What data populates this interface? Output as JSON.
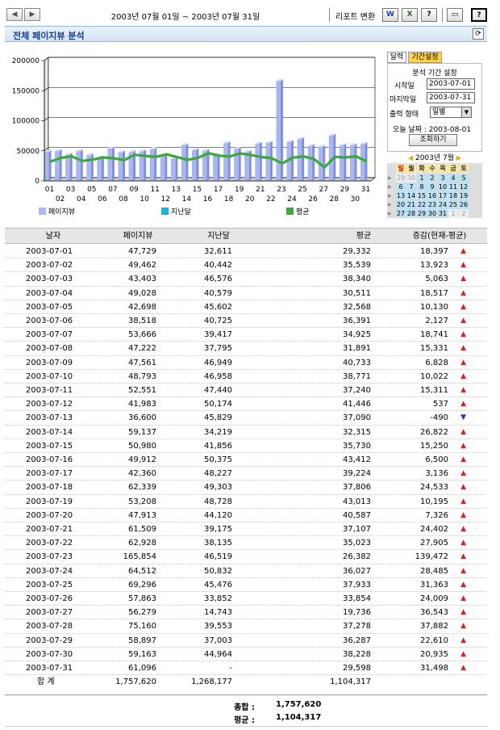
{
  "toolbar": {
    "prev_icon": "◀",
    "next_icon": "▶",
    "date_range": "2003년 07월 01일 ~ 2003년 07월 31일",
    "report_label": "리포트 변환",
    "word_icon": "W",
    "excel_icon": "X",
    "help_icon": "?",
    "print_icon": "▭",
    "info_icon": "?"
  },
  "title": "전체 페이지뷰 분석",
  "refresh_icon": "⟳",
  "panel": {
    "tab_calendar": "달력",
    "tab_period": "기간설정",
    "heading": "분석 기간 설정",
    "start_label": "시작일",
    "start_value": "2003-07-01",
    "end_label": "마지막일",
    "end_value": "2003-07-31",
    "output_label": "출력 형태",
    "output_value": "일별",
    "today_label": "오늘 날짜 : 2003-08-01",
    "query_button": "조회하기"
  },
  "calendar": {
    "month_label": "2003년 7월",
    "weekday_headers": [
      "일",
      "월",
      "화",
      "수",
      "목",
      "금",
      "토"
    ],
    "weeks": [
      [
        "29",
        "30",
        "1",
        "2",
        "3",
        "4",
        "5"
      ],
      [
        "6",
        "7",
        "8",
        "9",
        "10",
        "11",
        "12"
      ],
      [
        "13",
        "14",
        "15",
        "16",
        "17",
        "18",
        "19"
      ],
      [
        "20",
        "21",
        "22",
        "23",
        "24",
        "25",
        "26"
      ],
      [
        "27",
        "28",
        "29",
        "30",
        "31",
        "1",
        "2"
      ]
    ]
  },
  "chart_data": {
    "type": "bar",
    "categories": [
      "01",
      "02",
      "03",
      "04",
      "05",
      "06",
      "07",
      "08",
      "09",
      "10",
      "11",
      "12",
      "13",
      "14",
      "15",
      "16",
      "17",
      "18",
      "19",
      "20",
      "21",
      "22",
      "23",
      "24",
      "25",
      "26",
      "27",
      "28",
      "29",
      "30",
      "31"
    ],
    "ylim": [
      0,
      200000
    ],
    "yticks": [
      "0",
      "50000",
      "100000",
      "150000",
      "200000"
    ],
    "grid": true,
    "legend_position": "bottom",
    "series": [
      {
        "name": "페이지뷰",
        "type": "bar",
        "color": "#a9b7ee",
        "values": [
          47729,
          49462,
          43403,
          49028,
          42698,
          38518,
          53666,
          47222,
          47561,
          48793,
          52551,
          41983,
          36600,
          59137,
          50980,
          49912,
          42360,
          62339,
          53208,
          47913,
          61509,
          62928,
          165854,
          64512,
          69296,
          57863,
          56279,
          75160,
          58897,
          59163,
          61096
        ]
      },
      {
        "name": "지난달",
        "type": "bar",
        "color": "#20b0e0",
        "values": [
          32611,
          40442,
          46576,
          40579,
          45602,
          40725,
          39417,
          37795,
          46949,
          46958,
          47440,
          50174,
          45829,
          34219,
          41856,
          50375,
          48227,
          49303,
          48728,
          44120,
          39175,
          38135,
          46519,
          50832,
          45476,
          33852,
          14743,
          39553,
          37003,
          44964,
          null
        ]
      },
      {
        "name": "평균",
        "type": "line",
        "color": "#3aa83a",
        "values": [
          29332,
          35539,
          38340,
          30511,
          32568,
          36391,
          34925,
          31891,
          40733,
          38771,
          37240,
          41446,
          37090,
          32315,
          35730,
          43412,
          39224,
          37806,
          43013,
          40587,
          37107,
          35023,
          26382,
          36027,
          37933,
          33854,
          19736,
          37278,
          36287,
          38228,
          29598
        ]
      }
    ]
  },
  "table": {
    "headers": [
      "날자",
      "페이지뷰",
      "지난달",
      "평균",
      "증감(현재-평균)"
    ],
    "rows": [
      [
        "2003-07-01",
        "47,729",
        "32,611",
        "29,332",
        "18,397",
        "up"
      ],
      [
        "2003-07-02",
        "49,462",
        "40,442",
        "35,539",
        "13,923",
        "up"
      ],
      [
        "2003-07-03",
        "43,403",
        "46,576",
        "38,340",
        "5,063",
        "up"
      ],
      [
        "2003-07-04",
        "49,028",
        "40,579",
        "30,511",
        "18,517",
        "up"
      ],
      [
        "2003-07-05",
        "42,698",
        "45,602",
        "32,568",
        "10,130",
        "up"
      ],
      [
        "2003-07-06",
        "38,518",
        "40,725",
        "36,391",
        "2,127",
        "up"
      ],
      [
        "2003-07-07",
        "53,666",
        "39,417",
        "34,925",
        "18,741",
        "up"
      ],
      [
        "2003-07-08",
        "47,222",
        "37,795",
        "31,891",
        "15,331",
        "up"
      ],
      [
        "2003-07-09",
        "47,561",
        "46,949",
        "40,733",
        "6,828",
        "up"
      ],
      [
        "2003-07-10",
        "48,793",
        "46,958",
        "38,771",
        "10,022",
        "up"
      ],
      [
        "2003-07-11",
        "52,551",
        "47,440",
        "37,240",
        "15,311",
        "up"
      ],
      [
        "2003-07-12",
        "41,983",
        "50,174",
        "41,446",
        "537",
        "up"
      ],
      [
        "2003-07-13",
        "36,600",
        "45,829",
        "37,090",
        "-490",
        "down"
      ],
      [
        "2003-07-14",
        "59,137",
        "34,219",
        "32,315",
        "26,822",
        "up"
      ],
      [
        "2003-07-15",
        "50,980",
        "41,856",
        "35,730",
        "15,250",
        "up"
      ],
      [
        "2003-07-16",
        "49,912",
        "50,375",
        "43,412",
        "6,500",
        "up"
      ],
      [
        "2003-07-17",
        "42,360",
        "48,227",
        "39,224",
        "3,136",
        "up"
      ],
      [
        "2003-07-18",
        "62,339",
        "49,303",
        "37,806",
        "24,533",
        "up"
      ],
      [
        "2003-07-19",
        "53,208",
        "48,728",
        "43,013",
        "10,195",
        "up"
      ],
      [
        "2003-07-20",
        "47,913",
        "44,120",
        "40,587",
        "7,326",
        "up"
      ],
      [
        "2003-07-21",
        "61,509",
        "39,175",
        "37,107",
        "24,402",
        "up"
      ],
      [
        "2003-07-22",
        "62,928",
        "38,135",
        "35,023",
        "27,905",
        "up"
      ],
      [
        "2003-07-23",
        "165,854",
        "46,519",
        "26,382",
        "139,472",
        "up"
      ],
      [
        "2003-07-24",
        "64,512",
        "50,832",
        "36,027",
        "28,485",
        "up"
      ],
      [
        "2003-07-25",
        "69,296",
        "45,476",
        "37,933",
        "31,363",
        "up"
      ],
      [
        "2003-07-26",
        "57,863",
        "33,852",
        "33,854",
        "24,009",
        "up"
      ],
      [
        "2003-07-27",
        "56,279",
        "14,743",
        "19,736",
        "36,543",
        "up"
      ],
      [
        "2003-07-28",
        "75,160",
        "39,553",
        "37,278",
        "37,882",
        "up"
      ],
      [
        "2003-07-29",
        "58,897",
        "37,003",
        "36,287",
        "22,610",
        "up"
      ],
      [
        "2003-07-30",
        "59,163",
        "44,964",
        "38,228",
        "20,935",
        "up"
      ],
      [
        "2003-07-31",
        "61,096",
        "-",
        "29,598",
        "31,498",
        "up"
      ]
    ],
    "total_row": [
      "합 계",
      "1,757,620",
      "1,268,177",
      "1,104,317"
    ]
  },
  "summary": {
    "total_label": "총합 :",
    "total_value": "1,757,620",
    "avg_label": "평균 :",
    "avg_value": "1,104,317"
  },
  "arrows": {
    "up": "▲",
    "down": "▼"
  }
}
